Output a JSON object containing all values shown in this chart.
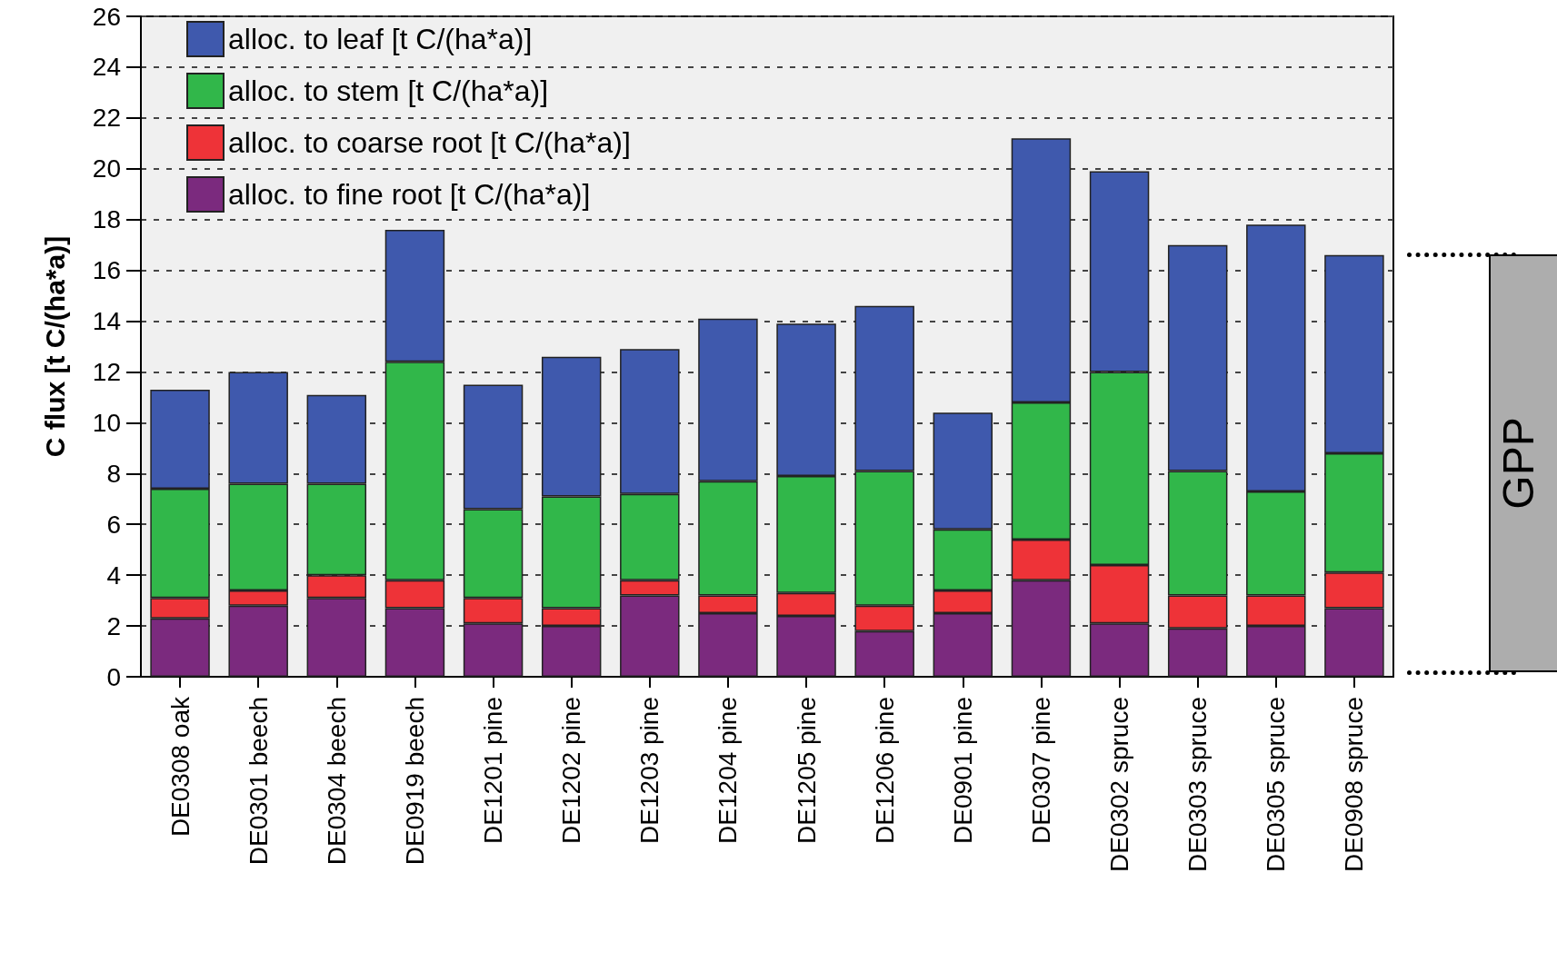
{
  "chart_data": {
    "type": "bar",
    "stacked": true,
    "ylabel": "C flux [t C/(ha*a)]",
    "categories": [
      "DE0308 oak",
      "DE0301 beech",
      "DE0304 beech",
      "DE0919 beech",
      "DE1201 pine",
      "DE1202 pine",
      "DE1203 pine",
      "DE1204 pine",
      "DE1205 pine",
      "DE1206 pine",
      "DE0901 pine",
      "DE0307 pine",
      "DE0302 spruce",
      "DE0303 spruce",
      "DE0305 spruce",
      "DE0908 spruce"
    ],
    "series": [
      {
        "name": "alloc. to fine root [t C/(ha*a)]",
        "color": "#7b2a7e",
        "values": [
          2.3,
          2.8,
          3.1,
          2.7,
          2.1,
          2.0,
          3.2,
          2.5,
          2.4,
          1.8,
          2.5,
          3.8,
          2.1,
          1.9,
          2.0,
          2.7
        ]
      },
      {
        "name": "alloc. to coarse root [t C/(ha*a)]",
        "color": "#ee3338",
        "values": [
          0.8,
          0.6,
          0.9,
          1.1,
          1.0,
          0.7,
          0.6,
          0.7,
          0.9,
          1.0,
          0.9,
          1.6,
          2.3,
          1.3,
          1.2,
          1.4
        ]
      },
      {
        "name": "alloc. to stem [t C/(ha*a)]",
        "color": "#31b74a",
        "values": [
          4.3,
          4.2,
          3.6,
          8.6,
          3.5,
          4.4,
          3.4,
          4.5,
          4.6,
          5.3,
          2.4,
          5.4,
          7.6,
          4.9,
          4.1,
          4.7
        ]
      },
      {
        "name": "alloc. to leaf [t C/(ha*a)]",
        "color": "#3f59ad",
        "values": [
          3.9,
          4.4,
          3.5,
          5.2,
          4.9,
          5.5,
          5.7,
          6.4,
          6.0,
          6.5,
          4.6,
          10.4,
          7.9,
          8.9,
          10.5,
          7.8
        ]
      }
    ],
    "ylim": [
      0,
      26
    ],
    "yticks": [
      0,
      2,
      4,
      6,
      8,
      10,
      12,
      14,
      16,
      18,
      20,
      22,
      24,
      26
    ],
    "grid": "y",
    "legend": "top left",
    "annotations": [
      "GPP"
    ]
  }
}
